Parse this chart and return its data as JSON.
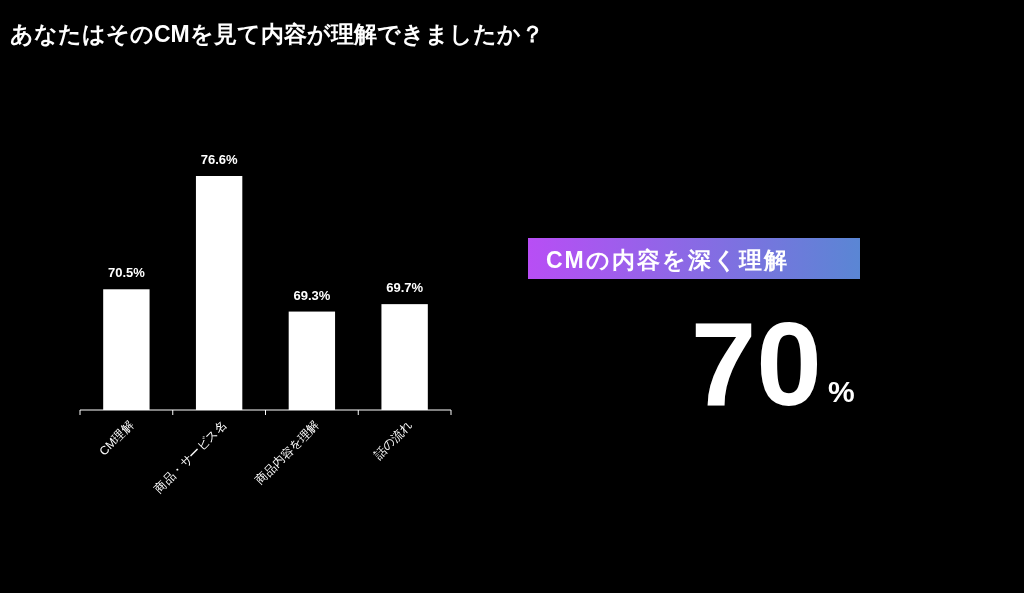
{
  "chart_data": [
    {
      "type": "bar",
      "title": "あなたはそのCMを見て内容が理解できましたか？",
      "categories": [
        "CM理解",
        "商品・サービス名",
        "商品内容を理解",
        "話の流れ"
      ],
      "values": [
        70.5,
        76.6,
        69.3,
        69.7
      ],
      "value_labels": [
        "70.5%",
        "76.6%",
        "69.3%",
        "69.7%"
      ],
      "color": "#ffffff",
      "ylim": [
        64,
        76.6
      ]
    },
    {
      "type": "other",
      "title": "CMの内容を深く理解",
      "colors": [
        "#b84ef5",
        "#5a86d4"
      ],
      "annotations": [
        "70",
        "%"
      ]
    }
  ]
}
